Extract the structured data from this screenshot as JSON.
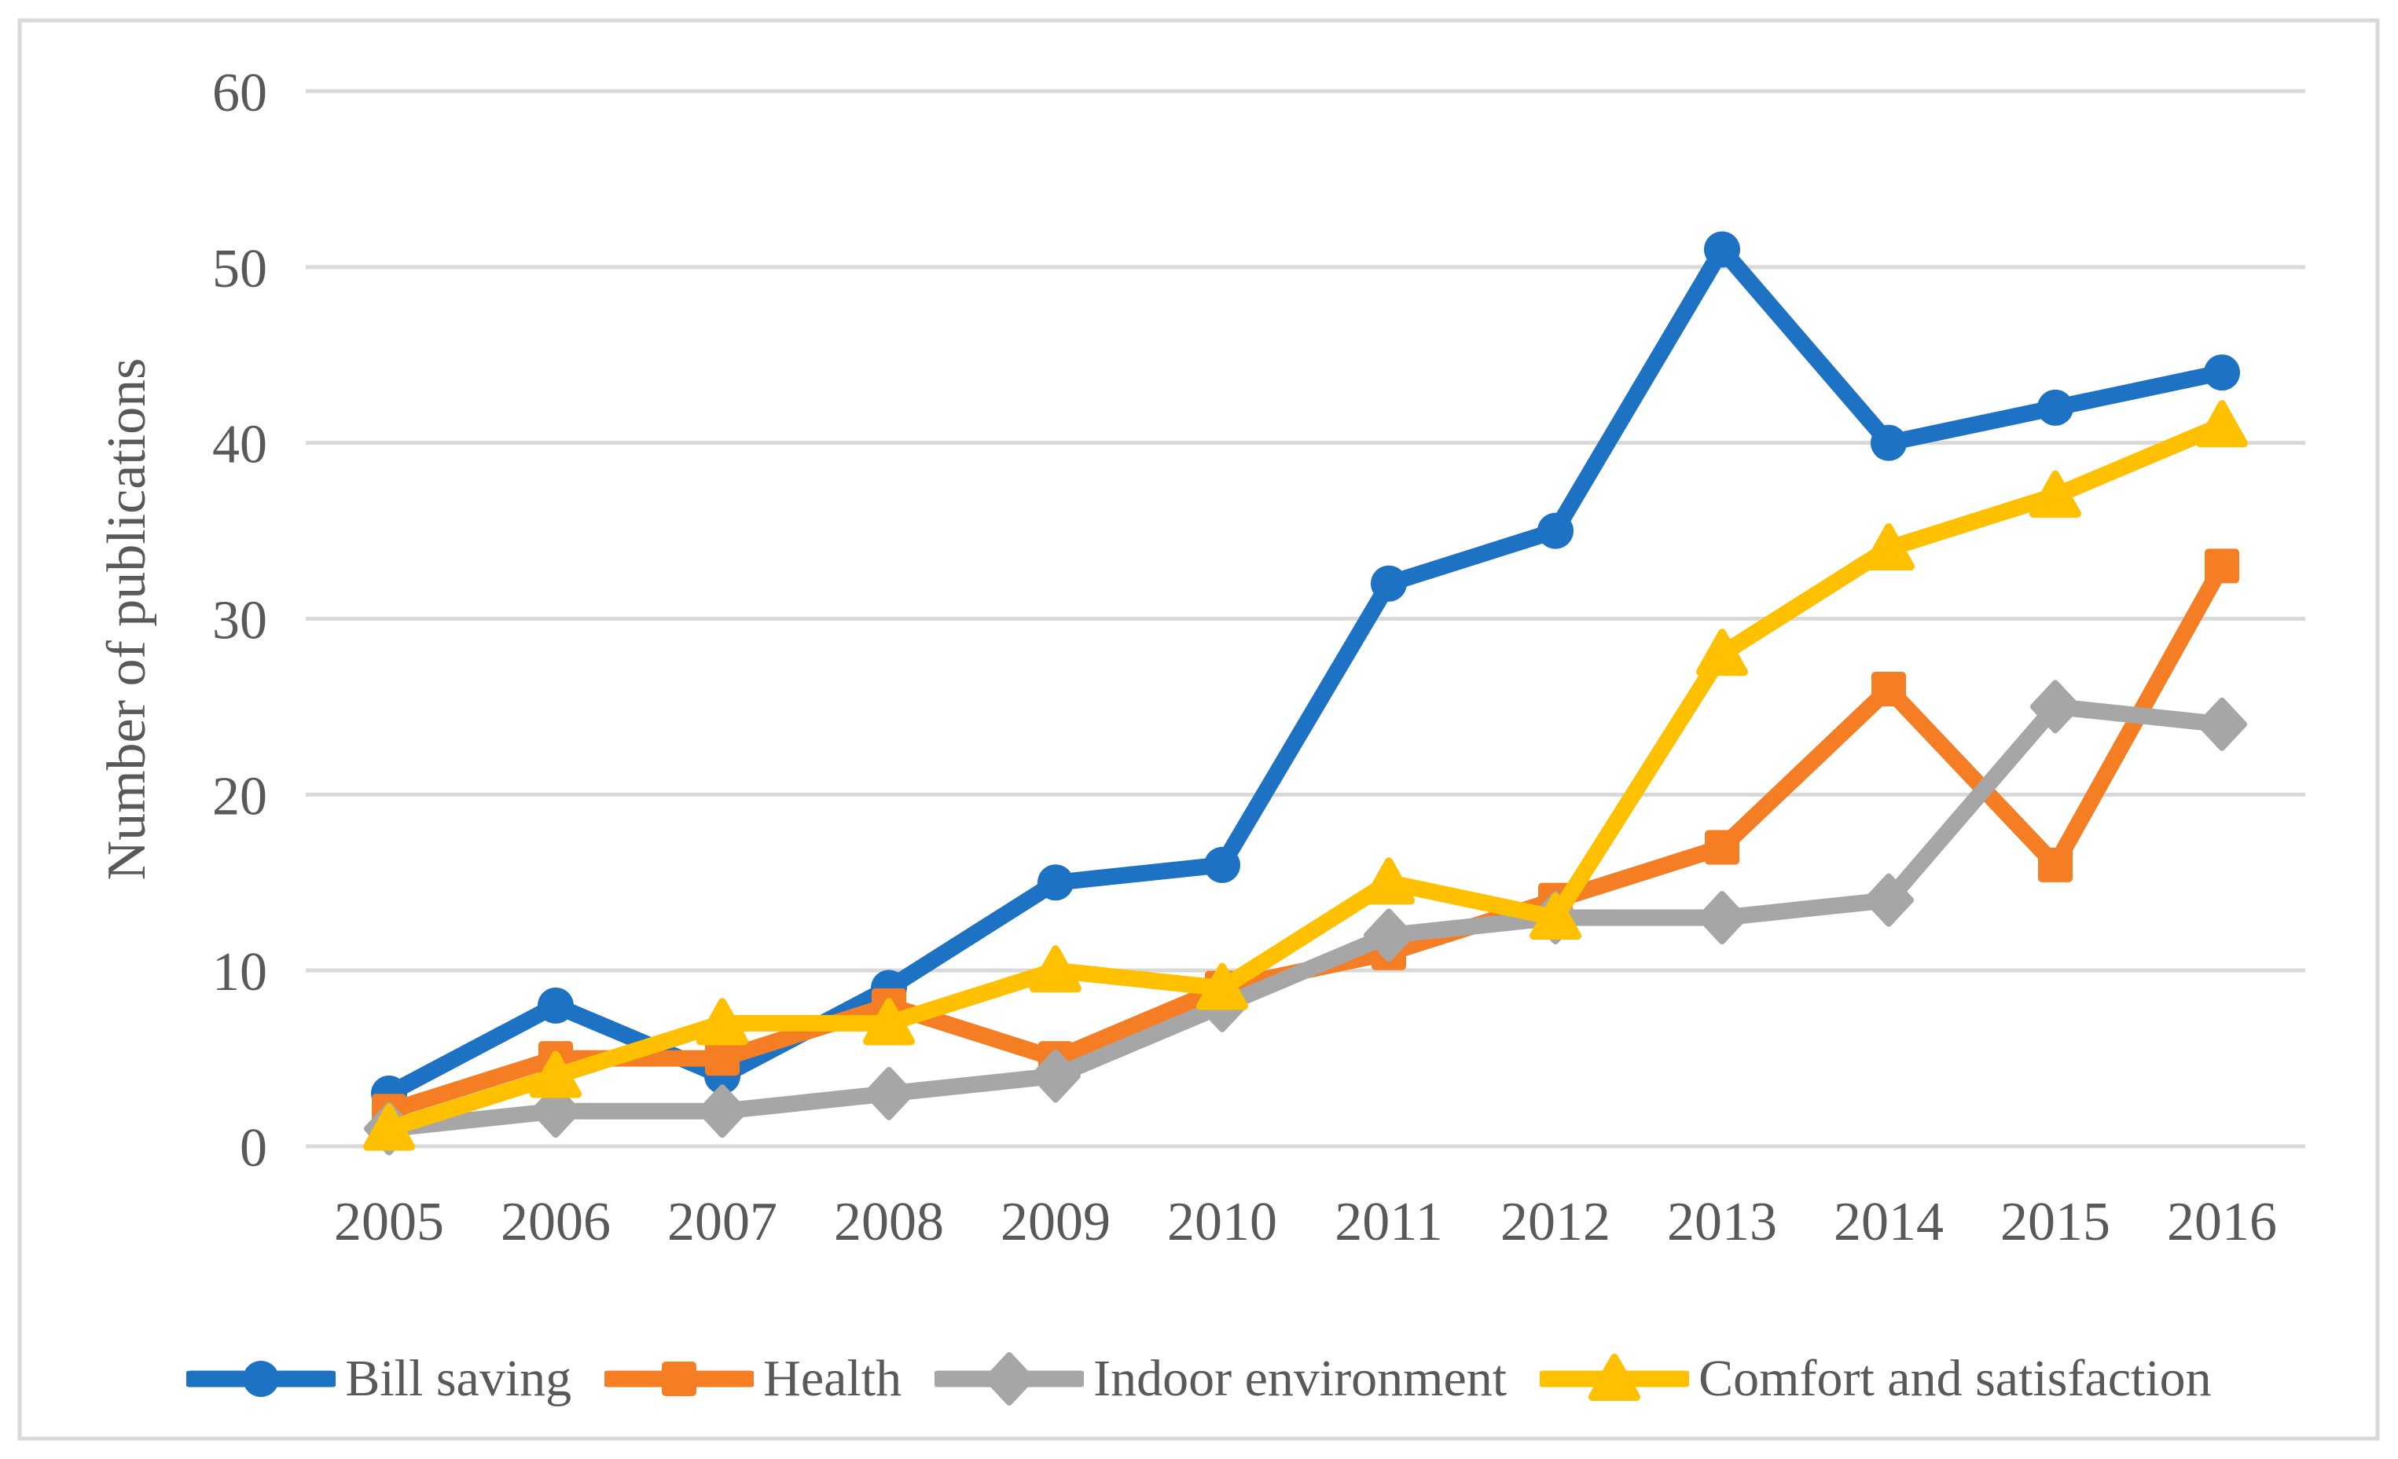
{
  "chart_data": {
    "type": "line",
    "title": "",
    "ylabel": "Number of publications",
    "xlabel": "",
    "categories": [
      "2005",
      "2006",
      "2007",
      "2008",
      "2009",
      "2010",
      "2011",
      "2012",
      "2013",
      "2014",
      "2015",
      "2016"
    ],
    "series": [
      {
        "name": "Bill saving",
        "marker": "circle",
        "color": "#1E72C4",
        "values": [
          3,
          8,
          4,
          9,
          15,
          16,
          32,
          35,
          51,
          40,
          42,
          44
        ]
      },
      {
        "name": "Health",
        "marker": "square",
        "color": "#F57E24",
        "values": [
          2,
          5,
          5,
          8,
          5,
          9,
          11,
          14,
          17,
          26,
          16,
          33
        ]
      },
      {
        "name": "Indoor environment",
        "marker": "diamond",
        "color": "#A6A6A6",
        "values": [
          1,
          2,
          2,
          3,
          4,
          8,
          12,
          13,
          13,
          14,
          25,
          24
        ]
      },
      {
        "name": "Comfort and satisfaction",
        "marker": "triangle",
        "color": "#FFC000",
        "values": [
          1,
          4,
          7,
          7,
          10,
          9,
          15,
          13,
          28,
          34,
          37,
          41
        ]
      }
    ],
    "ylim": [
      0,
      60
    ],
    "yticks": [
      0,
      10,
      20,
      30,
      40,
      50,
      60
    ],
    "grid": "horizontal",
    "legend_position": "bottom",
    "text_color": "#595959",
    "gridline_color": "#D9D9D9",
    "border_color": "#D9D9D9",
    "background": "#FFFFFF"
  }
}
